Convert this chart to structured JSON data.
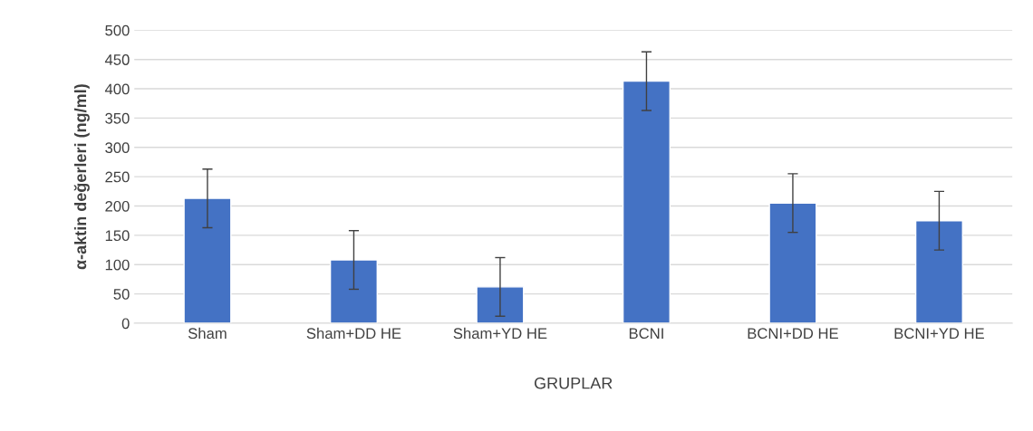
{
  "chart_data": {
    "type": "bar",
    "xlabel": "GRUPLAR",
    "ylabel": "α-aktin değerleri (ng/ml)",
    "categories": [
      "Sham",
      "Sham+DD HE",
      "Sham+YD HE",
      "BCNI",
      "BCNI+DD HE",
      "BCNI+YD HE"
    ],
    "values": [
      213,
      108,
      62,
      413,
      205,
      175
    ],
    "errors": [
      50,
      50,
      50,
      50,
      50,
      50
    ],
    "color": "#4472c4",
    "ylim": [
      0,
      500
    ],
    "yticks": [
      0,
      50,
      100,
      150,
      200,
      250,
      300,
      350,
      400,
      450,
      500
    ],
    "grid": "y"
  }
}
